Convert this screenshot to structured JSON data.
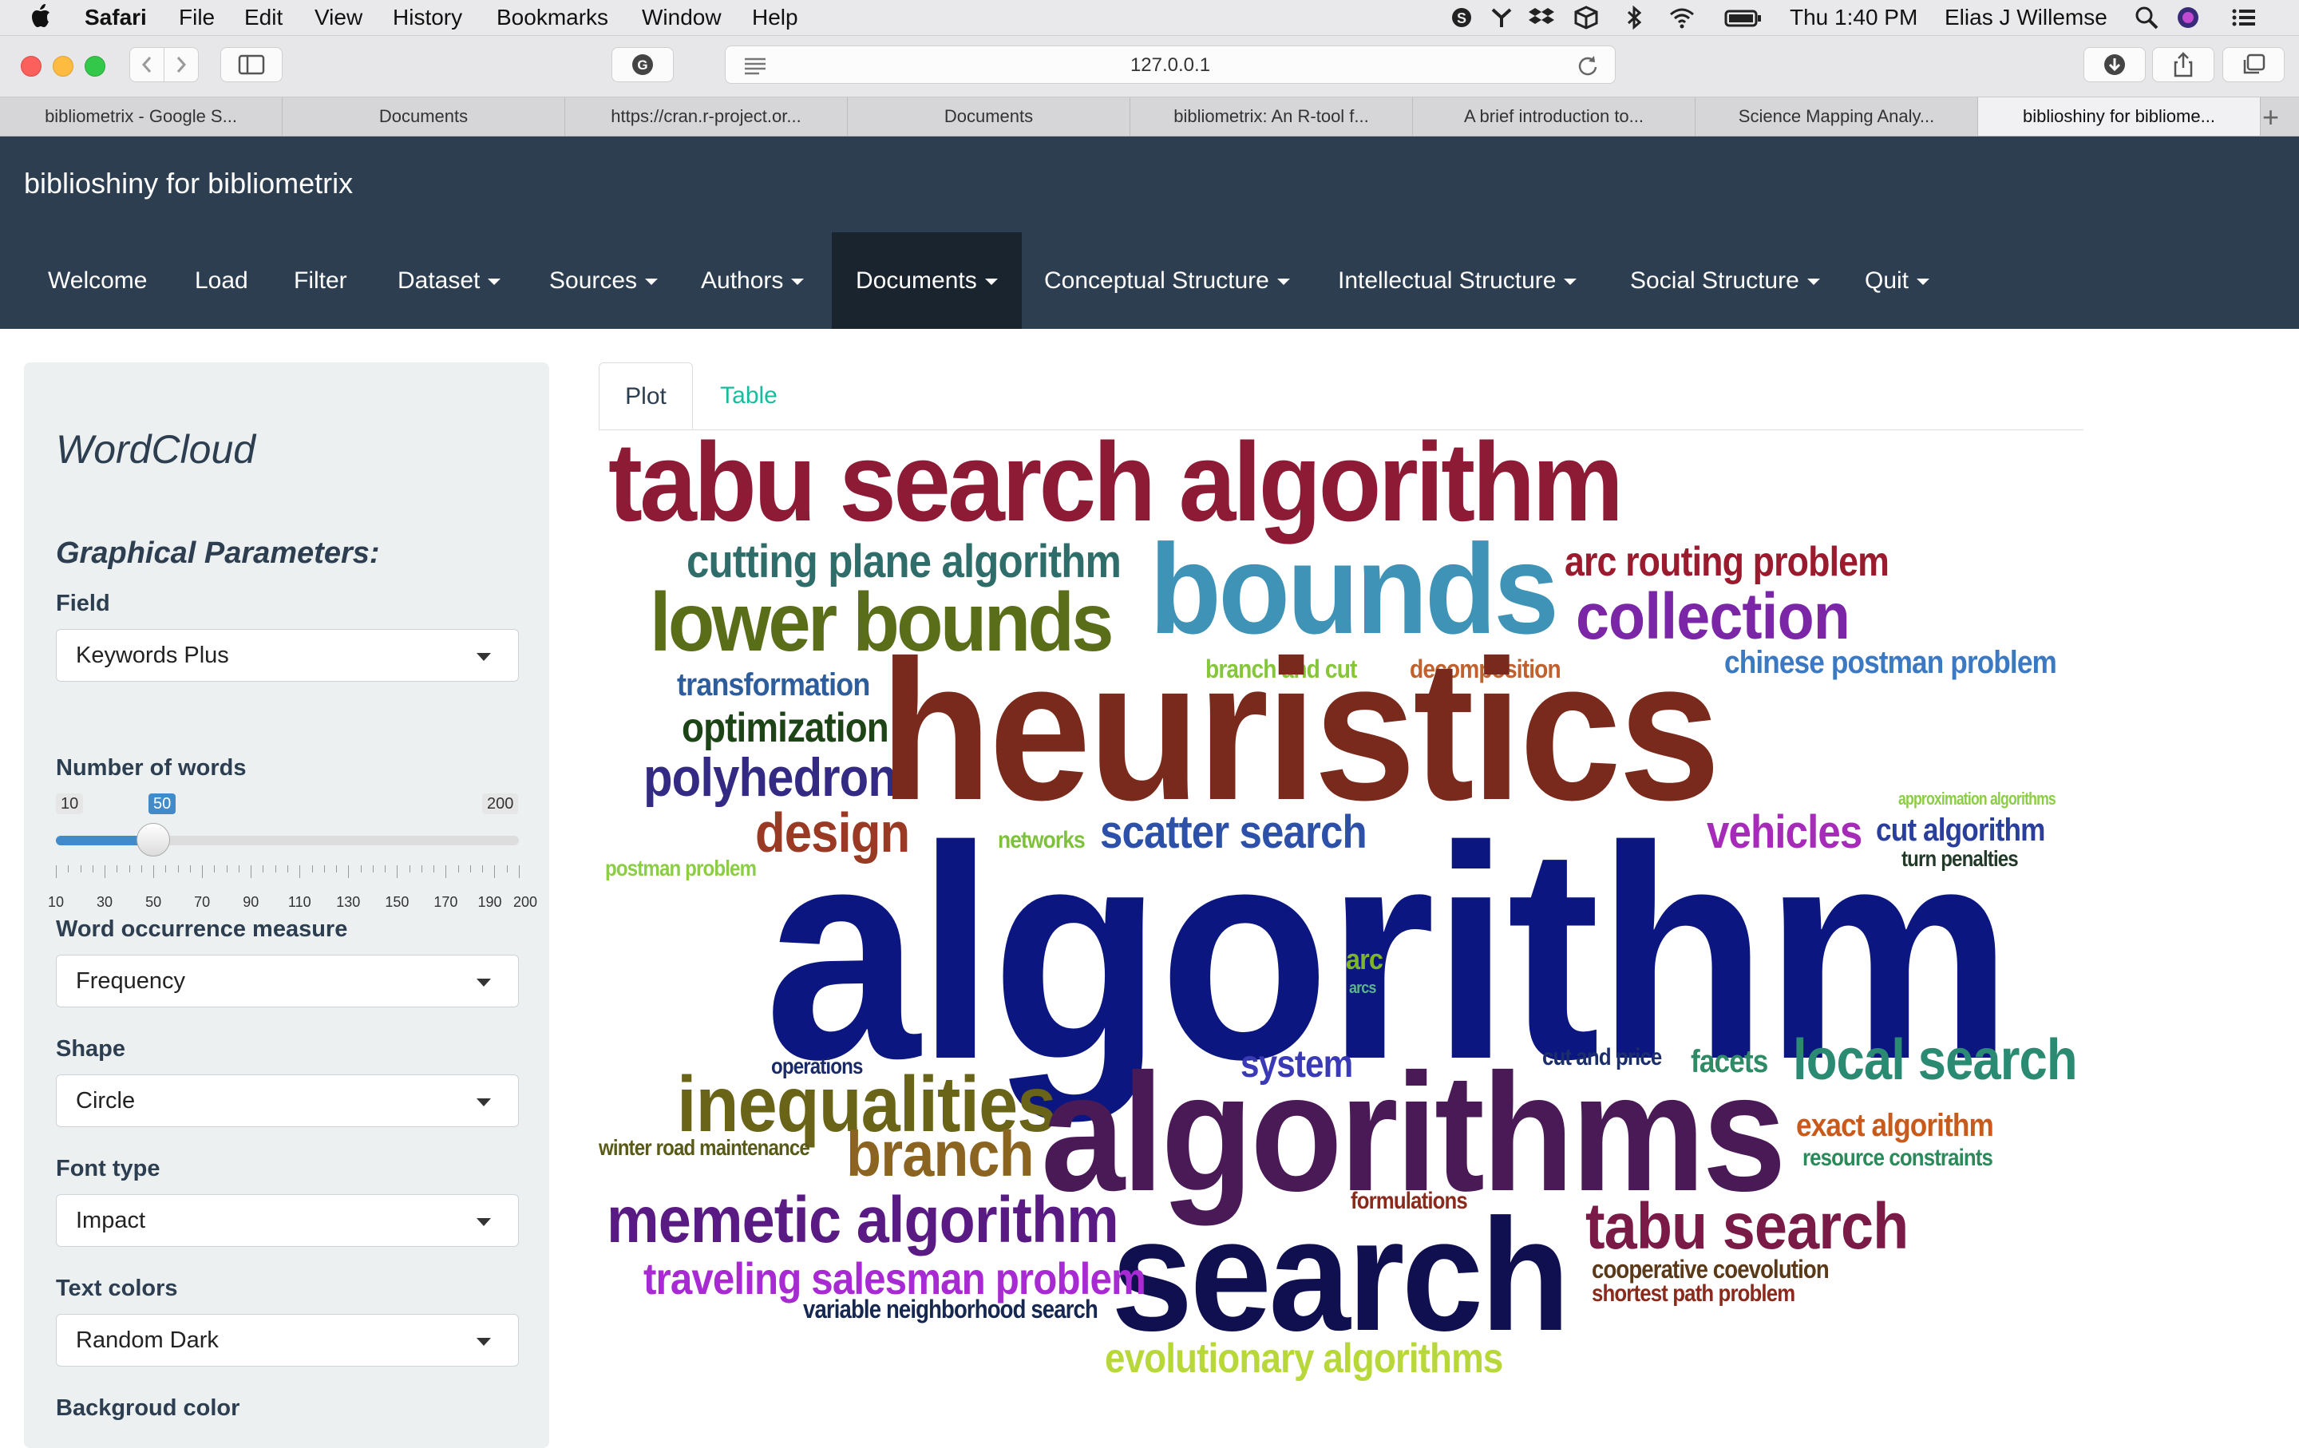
{
  "menubar": {
    "app": "Safari",
    "items": [
      "File",
      "Edit",
      "View",
      "History",
      "Bookmarks",
      "Window",
      "Help"
    ],
    "clock": "Thu 1:40 PM",
    "user": "Elias J Willemse"
  },
  "toolbar": {
    "url": "127.0.0.1"
  },
  "tabs": [
    {
      "label": "bibliometrix - Google S..."
    },
    {
      "label": "Documents"
    },
    {
      "label": "https://cran.r-project.or..."
    },
    {
      "label": "Documents"
    },
    {
      "label": "bibliometrix: An R-tool f..."
    },
    {
      "label": "A brief introduction to..."
    },
    {
      "label": "Science Mapping Analy..."
    },
    {
      "label": "biblioshiny for bibliome..."
    }
  ],
  "app": {
    "brand": "biblioshiny for bibliometrix",
    "nav": [
      {
        "label": "Welcome",
        "dropdown": false
      },
      {
        "label": "Load",
        "dropdown": false
      },
      {
        "label": "Filter",
        "dropdown": false
      },
      {
        "label": "Dataset",
        "dropdown": true
      },
      {
        "label": "Sources",
        "dropdown": true
      },
      {
        "label": "Authors",
        "dropdown": true
      },
      {
        "label": "Documents",
        "dropdown": true
      },
      {
        "label": "Conceptual Structure",
        "dropdown": true
      },
      {
        "label": "Intellectual Structure",
        "dropdown": true
      },
      {
        "label": "Social Structure",
        "dropdown": true
      },
      {
        "label": "Quit",
        "dropdown": true
      }
    ]
  },
  "sidebar": {
    "title": "WordCloud",
    "section": "Graphical Parameters:",
    "field": {
      "label": "Field",
      "value": "Keywords Plus"
    },
    "words": {
      "label": "Number of words",
      "min": "10",
      "max": "200",
      "value": "50",
      "tick_labels": [
        "10",
        "30",
        "50",
        "70",
        "90",
        "110",
        "130",
        "150",
        "170",
        "190",
        "200"
      ]
    },
    "measure": {
      "label": "Word occurrence measure",
      "value": "Frequency"
    },
    "shape": {
      "label": "Shape",
      "value": "Circle"
    },
    "font": {
      "label": "Font type",
      "value": "Impact"
    },
    "colors": {
      "label": "Text colors",
      "value": "Random Dark"
    },
    "bg": {
      "label": "Backgroud color"
    }
  },
  "panel": {
    "tabs": [
      "Plot",
      "Table"
    ]
  },
  "wordcloud": {
    "words": [
      {
        "text": "tabu search algorithm",
        "color": "#8e1b36"
      },
      {
        "text": "cutting plane algorithm",
        "color": "#2f6d6a"
      },
      {
        "text": "bounds",
        "color": "#3e93b6"
      },
      {
        "text": "arc routing problem",
        "color": "#9a1a2e"
      },
      {
        "text": "lower bounds",
        "color": "#5a6e1a"
      },
      {
        "text": "collection",
        "color": "#7a26a6"
      },
      {
        "text": "branch and cut",
        "color": "#86c63a"
      },
      {
        "text": "decomposition",
        "color": "#c0612e"
      },
      {
        "text": "chinese postman problem",
        "color": "#3b79c2"
      },
      {
        "text": "transformation",
        "color": "#2d5d9c"
      },
      {
        "text": "optimization",
        "color": "#1d4417"
      },
      {
        "text": "polyhedron",
        "color": "#332a84"
      },
      {
        "text": "heuristics",
        "color": "#7a2a1c"
      },
      {
        "text": "approximation algorithms",
        "color": "#8ccd46"
      },
      {
        "text": "design",
        "color": "#9a3a24"
      },
      {
        "text": "networks",
        "color": "#7dc23a"
      },
      {
        "text": "scatter search",
        "color": "#2d51a8"
      },
      {
        "text": "vehicles",
        "color": "#a52bb8"
      },
      {
        "text": "cut algorithm",
        "color": "#2a3f9b"
      },
      {
        "text": "postman problem",
        "color": "#8ccd46"
      },
      {
        "text": "turn penalties",
        "color": "#233a2a"
      },
      {
        "text": "algorithm",
        "color": "#0b1680"
      },
      {
        "text": "arc",
        "color": "#7db52b"
      },
      {
        "text": "arcs",
        "color": "#5cb38d"
      },
      {
        "text": "operations",
        "color": "#1a2a66"
      },
      {
        "text": "system",
        "color": "#3a3ab7"
      },
      {
        "text": "cut and price",
        "color": "#1c2d6b"
      },
      {
        "text": "facets",
        "color": "#2f8a66"
      },
      {
        "text": "local search",
        "color": "#2a8a72"
      },
      {
        "text": "inequalities",
        "color": "#6a6418"
      },
      {
        "text": "algorithms",
        "color": "#4a1a56"
      },
      {
        "text": "exact algorithm",
        "color": "#c85a1c"
      },
      {
        "text": "winter road maintenance",
        "color": "#5a5a18"
      },
      {
        "text": "branch",
        "color": "#8a6420"
      },
      {
        "text": "resource constraints",
        "color": "#2a8a5a"
      },
      {
        "text": "formulations",
        "color": "#8a2a1c"
      },
      {
        "text": "memetic algorithm",
        "color": "#5a1a84"
      },
      {
        "text": "search",
        "color": "#101050"
      },
      {
        "text": "tabu search",
        "color": "#7a1a46"
      },
      {
        "text": "traveling salesman problem",
        "color": "#a72ad2"
      },
      {
        "text": "cooperative coevolution",
        "color": "#5a3a18"
      },
      {
        "text": "shortest path problem",
        "color": "#8a2a1c"
      },
      {
        "text": "variable neighborhood search",
        "color": "#16284f"
      },
      {
        "text": "evolutionary algorithms",
        "color": "#b8d83a"
      }
    ]
  }
}
